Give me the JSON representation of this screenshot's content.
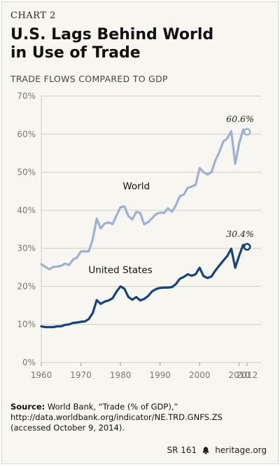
{
  "header": {
    "chart_number": "CHART 2",
    "title_line1": "U.S. Lags Behind World",
    "title_line2": "in Use of Trade",
    "subtitle": "TRADE FLOWS COMPARED TO GDP"
  },
  "source": {
    "label": "Source:",
    "text": "World Bank, “Trade (% of GDP),”",
    "url": "http://data.worldbank.org/indicator/NE.TRD.GNFS.ZS",
    "accessed": "(accessed October 9, 2014)."
  },
  "footer": {
    "report_id": "SR 161",
    "site": "heritage.org"
  },
  "colors": {
    "world": "#9fb0d3",
    "us": "#16427f",
    "grid": "#cfcdc4",
    "axis_text": "#777777"
  },
  "chart_data": {
    "type": "line",
    "title": "",
    "xlabel": "",
    "ylabel": "",
    "xlim": [
      1960,
      2012
    ],
    "ylim": [
      0,
      70
    ],
    "x_ticks": [
      "1960",
      "1970",
      "1980",
      "1990",
      "2000",
      "2010",
      "2012"
    ],
    "y_ticks": [
      "0%",
      "10%",
      "20%",
      "30%",
      "40%",
      "50%",
      "60%",
      "70%"
    ],
    "grid": true,
    "series": [
      {
        "name": "World",
        "color": "#9fb0d3",
        "end_label": "60.6%",
        "x": [
          1960,
          1961,
          1962,
          1963,
          1964,
          1965,
          1966,
          1967,
          1968,
          1969,
          1970,
          1971,
          1972,
          1973,
          1974,
          1975,
          1976,
          1977,
          1978,
          1979,
          1980,
          1981,
          1982,
          1983,
          1984,
          1985,
          1986,
          1987,
          1988,
          1989,
          1990,
          1991,
          1992,
          1993,
          1994,
          1995,
          1996,
          1997,
          1998,
          1999,
          2000,
          2001,
          2002,
          2003,
          2004,
          2005,
          2006,
          2007,
          2008,
          2009,
          2010,
          2011,
          2012
        ],
        "values": [
          25.8,
          25.2,
          24.5,
          25.1,
          25.2,
          25.4,
          26.0,
          25.6,
          27.0,
          27.6,
          29.2,
          29.2,
          29.2,
          32.4,
          37.8,
          35.2,
          36.5,
          36.8,
          36.4,
          38.6,
          40.8,
          41.0,
          38.5,
          37.6,
          39.6,
          39.3,
          36.3,
          36.9,
          37.9,
          39.0,
          39.4,
          39.3,
          40.5,
          39.6,
          41.3,
          43.7,
          44.1,
          45.9,
          46.2,
          46.7,
          51.1,
          50.0,
          49.4,
          50.0,
          53.2,
          55.3,
          58.1,
          58.9,
          60.8,
          52.2,
          57.6,
          61.2,
          60.6
        ]
      },
      {
        "name": "United States",
        "color": "#16427f",
        "end_label": "30.4%",
        "x": [
          1960,
          1961,
          1962,
          1963,
          1964,
          1965,
          1966,
          1967,
          1968,
          1969,
          1970,
          1971,
          1972,
          1973,
          1974,
          1975,
          1976,
          1977,
          1978,
          1979,
          1980,
          1981,
          1982,
          1983,
          1984,
          1985,
          1986,
          1987,
          1988,
          1989,
          1990,
          1991,
          1992,
          1993,
          1994,
          1995,
          1996,
          1997,
          1998,
          1999,
          2000,
          2001,
          2002,
          2003,
          2004,
          2005,
          2006,
          2007,
          2008,
          2009,
          2010,
          2011,
          2012
        ],
        "values": [
          9.5,
          9.3,
          9.3,
          9.3,
          9.5,
          9.5,
          9.9,
          10.0,
          10.4,
          10.5,
          10.7,
          10.8,
          11.4,
          13.0,
          16.4,
          15.4,
          16.0,
          16.3,
          16.9,
          18.6,
          20.0,
          19.4,
          17.2,
          16.5,
          17.2,
          16.3,
          16.7,
          17.5,
          18.7,
          19.3,
          19.6,
          19.7,
          19.7,
          19.8,
          20.6,
          22.0,
          22.5,
          23.2,
          22.8,
          23.2,
          24.9,
          22.7,
          22.2,
          22.6,
          24.2,
          25.5,
          26.8,
          28.0,
          29.9,
          24.9,
          28.1,
          30.9,
          30.4
        ]
      }
    ]
  }
}
